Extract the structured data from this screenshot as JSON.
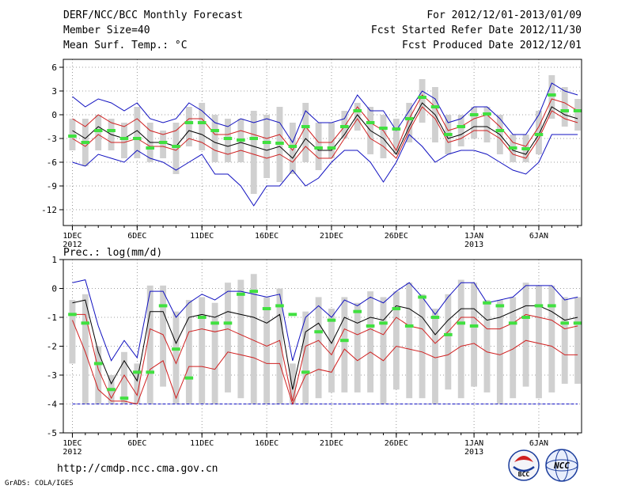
{
  "header": {
    "title_line1": "DERF/NCC/BCC Monthly Forecast",
    "title_line2": "Member Size=40",
    "title_line3": "Mean Surf. Temp.: °C",
    "period": "For 2012/12/01-2013/01/09",
    "started": "Fcst Started Refer Date 2012/11/30",
    "produced": "Fcst Produced Date 2012/12/01"
  },
  "footer": {
    "url": "http://cmdp.ncc.cma.gov.cn",
    "credit": "GrADS: COLA/IGES",
    "logo_bcc_text": "BCC",
    "logo_ncc_text": "NCC"
  },
  "colors": {
    "spread_bar": "#d0d0d0",
    "mean_marker": "#40e040",
    "ensemble_mean": "#000000",
    "percentile_band": "#d02020",
    "extreme_envelope": "#1010c0",
    "grid": "#808080"
  },
  "chart_data": [
    {
      "type": "line",
      "title": "Mean Surf. Temp.: °C",
      "ylabel": "°C",
      "ylim": [
        -14,
        7
      ],
      "yticks": [
        6,
        3,
        0,
        -3,
        -6,
        -9,
        -12
      ],
      "xlim": [
        0.3,
        40.3
      ],
      "xticks": [
        {
          "day": 1,
          "label": "1DEC",
          "sub": "2012"
        },
        {
          "day": 6,
          "label": "6DEC",
          "sub": ""
        },
        {
          "day": 11,
          "label": "11DEC",
          "sub": ""
        },
        {
          "day": 16,
          "label": "16DEC",
          "sub": ""
        },
        {
          "day": 21,
          "label": "21DEC",
          "sub": ""
        },
        {
          "day": 26,
          "label": "26DEC",
          "sub": ""
        },
        {
          "day": 32,
          "label": "1JAN",
          "sub": "2013"
        },
        {
          "day": 37,
          "label": "6JAN",
          "sub": ""
        }
      ],
      "days": [
        1,
        2,
        3,
        4,
        5,
        6,
        7,
        8,
        9,
        10,
        11,
        12,
        13,
        14,
        15,
        16,
        17,
        18,
        19,
        20,
        21,
        22,
        23,
        24,
        25,
        26,
        27,
        28,
        29,
        30,
        31,
        32,
        33,
        34,
        35,
        36,
        37,
        38,
        39,
        40
      ],
      "series": [
        {
          "name": "max",
          "values": [
            2.3,
            1,
            2,
            1.5,
            0.5,
            1.5,
            -0.5,
            -1,
            -0.5,
            1.5,
            0.5,
            -1,
            -1.5,
            -0.5,
            -1,
            -0.5,
            -1,
            -3.5,
            0.5,
            -1,
            -1,
            -0.5,
            2.5,
            0.5,
            0.5,
            -2,
            0.5,
            3,
            2,
            -1,
            -0.5,
            1,
            1,
            -0.5,
            -2.5,
            -2.5,
            0,
            4,
            3,
            2.5
          ]
        },
        {
          "name": "p90",
          "values": [
            -0.5,
            -1.5,
            0,
            -1,
            -1.5,
            -0.5,
            -2,
            -2.5,
            -2,
            -0.5,
            -0.5,
            -2.5,
            -2.5,
            -2,
            -2.5,
            -3,
            -2.5,
            -4.5,
            -1.5,
            -3.5,
            -3.5,
            -1.5,
            1,
            -1,
            -2,
            -4.5,
            -0.5,
            2.5,
            1,
            -2,
            -1.5,
            -0.5,
            0,
            -1.5,
            -3.5,
            -4,
            -1.5,
            2,
            1.5,
            0.5
          ]
        },
        {
          "name": "mean",
          "values": [
            -2,
            -3,
            -1.5,
            -2.5,
            -3,
            -2,
            -3.5,
            -3.5,
            -4,
            -2,
            -2.5,
            -3.5,
            -4,
            -3.5,
            -4,
            -4.5,
            -4,
            -5.5,
            -3,
            -4.5,
            -4.5,
            -2.5,
            0,
            -2,
            -3,
            -5,
            -1.5,
            1.5,
            0,
            -3,
            -2.5,
            -1.5,
            -1.5,
            -2.5,
            -4.5,
            -5,
            -2.5,
            1,
            0,
            -0.5
          ]
        },
        {
          "name": "p10",
          "values": [
            -3,
            -4,
            -2.5,
            -3.5,
            -3.5,
            -3,
            -4,
            -4,
            -4.5,
            -3,
            -3.5,
            -4.5,
            -5,
            -4.5,
            -5,
            -5.5,
            -5,
            -6,
            -4,
            -5.5,
            -5.5,
            -3,
            -0.5,
            -3,
            -4,
            -5.5,
            -2,
            1,
            -0.5,
            -3.5,
            -3,
            -2,
            -2,
            -3,
            -5,
            -5.5,
            -3,
            0.5,
            -0.5,
            -1
          ]
        },
        {
          "name": "min",
          "values": [
            -6,
            -6.5,
            -5,
            -5.5,
            -6,
            -4.5,
            -5.5,
            -6,
            -7,
            -6,
            -5,
            -7.5,
            -7.5,
            -9,
            -11.5,
            -9,
            -9,
            -7,
            -9,
            -8,
            -6,
            -4.5,
            -4.5,
            -6,
            -8.5,
            -6,
            -2.5,
            -4,
            -6,
            -5,
            -4.5,
            -4.5,
            -5,
            -6,
            -7,
            -7.5,
            -6,
            -2.5,
            -2.5,
            -2.5
          ]
        },
        {
          "name": "ensemble_mean_marker",
          "values": [
            -2.7,
            -3.5,
            -2,
            -2,
            -3,
            -3,
            -4.2,
            -3.5,
            -4,
            -1,
            -1,
            -2,
            -3,
            -3.2,
            -3,
            -3.5,
            -3.6,
            -4,
            -1.5,
            -4.2,
            -4.2,
            -1.5,
            0.5,
            -1,
            -1.7,
            -1.8,
            -0.5,
            2.2,
            1,
            -2.5,
            -1.5,
            0,
            0.1,
            -2,
            -4.2,
            -4.3,
            -2.5,
            2.5,
            0.5,
            0.5
          ]
        },
        {
          "name": "spread_high",
          "values": [
            -0.5,
            -0.5,
            0,
            -0.5,
            -1,
            1,
            -1,
            -2,
            -1,
            1,
            1.5,
            0,
            -0.5,
            -0.5,
            0.5,
            0,
            1,
            -1,
            1.5,
            -1,
            -1,
            0.5,
            1.5,
            1,
            0,
            -0.5,
            1.5,
            4.5,
            3.5,
            0,
            0,
            1,
            1,
            0,
            -2.5,
            -2.5,
            0.5,
            5,
            3.5,
            2
          ]
        },
        {
          "name": "spread_low",
          "values": [
            -4.5,
            -6.5,
            -4.5,
            -4.5,
            -5.5,
            -5.5,
            -6,
            -5.5,
            -7.5,
            -4,
            -4.5,
            -6,
            -6,
            -6,
            -10,
            -8,
            -8.5,
            -7.5,
            -6,
            -7,
            -5.5,
            -3,
            -2,
            -5,
            -5.5,
            -5,
            -3.5,
            -1,
            -3.5,
            -5,
            -4,
            -3,
            -3.5,
            -5,
            -6,
            -6,
            -5,
            -0.5,
            -1.5,
            -2
          ]
        }
      ]
    },
    {
      "type": "line",
      "title": "Prec.: log(mm/d)",
      "ylabel": "log(mm/d)",
      "ylim": [
        -5,
        1
      ],
      "yticks": [
        1,
        0,
        -1,
        -2,
        -3,
        -4,
        -5
      ],
      "xlim": [
        0.3,
        40.3
      ],
      "xticks": [
        {
          "day": 1,
          "label": "1DEC",
          "sub": "2012"
        },
        {
          "day": 6,
          "label": "6DEC",
          "sub": ""
        },
        {
          "day": 11,
          "label": "11DEC",
          "sub": ""
        },
        {
          "day": 16,
          "label": "16DEC",
          "sub": ""
        },
        {
          "day": 21,
          "label": "21DEC",
          "sub": ""
        },
        {
          "day": 26,
          "label": "26DEC",
          "sub": ""
        },
        {
          "day": 32,
          "label": "1JAN",
          "sub": "2013"
        },
        {
          "day": 37,
          "label": "6JAN",
          "sub": ""
        }
      ],
      "baseline": -4,
      "days": [
        1,
        2,
        3,
        4,
        5,
        6,
        7,
        8,
        9,
        10,
        11,
        12,
        13,
        14,
        15,
        16,
        17,
        18,
        19,
        20,
        21,
        22,
        23,
        24,
        25,
        26,
        27,
        28,
        29,
        30,
        31,
        32,
        33,
        34,
        35,
        36,
        37,
        38,
        39,
        40
      ],
      "series": [
        {
          "name": "max",
          "values": [
            0.2,
            0.3,
            -1.3,
            -2.5,
            -1.8,
            -2.4,
            -0.1,
            -0.1,
            -1,
            -0.5,
            -0.2,
            -0.4,
            -0.1,
            -0.1,
            -0.2,
            -0.3,
            -0.2,
            -2.5,
            -1,
            -0.6,
            -1,
            -0.4,
            -0.6,
            -0.3,
            -0.5,
            -0.1,
            0.2,
            -0.3,
            -0.9,
            -0.3,
            0.2,
            0.2,
            -0.5,
            -0.4,
            -0.3,
            0.1,
            0.1,
            0.1,
            -0.4,
            -0.3
          ]
        },
        {
          "name": "mean",
          "values": [
            -0.5,
            -0.4,
            -2.2,
            -3.3,
            -2.5,
            -3.2,
            -0.8,
            -0.8,
            -1.9,
            -1,
            -0.9,
            -1,
            -0.8,
            -0.9,
            -1,
            -1.2,
            -0.9,
            -3.5,
            -1.5,
            -1.2,
            -1.9,
            -1,
            -1.2,
            -1,
            -1.1,
            -0.6,
            -0.7,
            -1,
            -1.6,
            -1.1,
            -0.7,
            -0.7,
            -1.1,
            -1,
            -0.8,
            -0.6,
            -0.6,
            -0.8,
            -1.1,
            -1
          ]
        },
        {
          "name": "p90",
          "values": [
            -0.9,
            -0.9,
            -2.8,
            -3.8,
            -3,
            -3.7,
            -1.4,
            -1.6,
            -2.6,
            -1.5,
            -1.4,
            -1.5,
            -1.4,
            -1.6,
            -1.8,
            -2,
            -1.8,
            -3.9,
            -2,
            -1.8,
            -2.3,
            -1.4,
            -1.6,
            -1.4,
            -1.6,
            -1,
            -1.3,
            -1.4,
            -1.9,
            -1.5,
            -1,
            -1,
            -1.4,
            -1.4,
            -1.2,
            -0.9,
            -1,
            -1.1,
            -1.4,
            -1.3
          ]
        },
        {
          "name": "p10",
          "values": [
            -1.1,
            -2.2,
            -3.5,
            -3.9,
            -3.9,
            -4,
            -2.8,
            -2.5,
            -3.8,
            -2.7,
            -2.7,
            -2.8,
            -2.2,
            -2.3,
            -2.4,
            -2.6,
            -2.6,
            -4,
            -3,
            -2.8,
            -2.9,
            -2.1,
            -2.5,
            -2.2,
            -2.5,
            -2,
            -2.1,
            -2.2,
            -2.4,
            -2.3,
            -2,
            -1.9,
            -2.2,
            -2.3,
            -2.1,
            -1.8,
            -1.9,
            -2,
            -2.3,
            -2.3
          ]
        },
        {
          "name": "ensemble_mean_marker",
          "values": [
            -0.9,
            -1.2,
            -2.6,
            -3.5,
            -3.8,
            -2.9,
            -2.9,
            -0.6,
            -2.1,
            -3.1,
            -1,
            -1.2,
            -1.2,
            -0.2,
            -0.1,
            -0.7,
            -0.6,
            -0.9,
            -2.9,
            -1.5,
            -1.1,
            -1.8,
            -0.8,
            -1.3,
            -1.2,
            -0.7,
            -1.3,
            -0.3,
            -1,
            -1.6,
            -1.2,
            -1.3,
            -0.5,
            -0.6,
            -1.2,
            -1,
            -0.6,
            -0.6,
            -1.2,
            -1.2
          ]
        },
        {
          "name": "spread_high",
          "values": [
            -0.4,
            -0.2,
            -2,
            -3,
            -2.2,
            -2.6,
            0.1,
            0.1,
            -0.8,
            -0.4,
            -0.3,
            -0.5,
            0.2,
            0.3,
            0.5,
            -0.3,
            0,
            -2.6,
            -0.8,
            -0.3,
            -0.7,
            -0.3,
            -0.5,
            -0.1,
            -0.3,
            -0.1,
            0.2,
            -0.2,
            -0.7,
            -0.2,
            0.3,
            0.2,
            -0.4,
            -0.4,
            -0.3,
            0.2,
            0.1,
            0.1,
            -0.3,
            -0.3
          ]
        },
        {
          "name": "spread_low",
          "values": [
            -2.6,
            -4,
            -4,
            -4,
            -4,
            -4,
            -4,
            -3.4,
            -4,
            -4,
            -4,
            -4,
            -3.6,
            -3.8,
            -4,
            -4,
            -4,
            -4,
            -4,
            -3.8,
            -3.6,
            -3.6,
            -3.6,
            -3.6,
            -4,
            -3.5,
            -3.8,
            -3.8,
            -4,
            -3.5,
            -3.8,
            -3.4,
            -3.6,
            -4,
            -3.8,
            -3.4,
            -3.8,
            -3.6,
            -3.3,
            -3.3
          ]
        }
      ]
    }
  ]
}
